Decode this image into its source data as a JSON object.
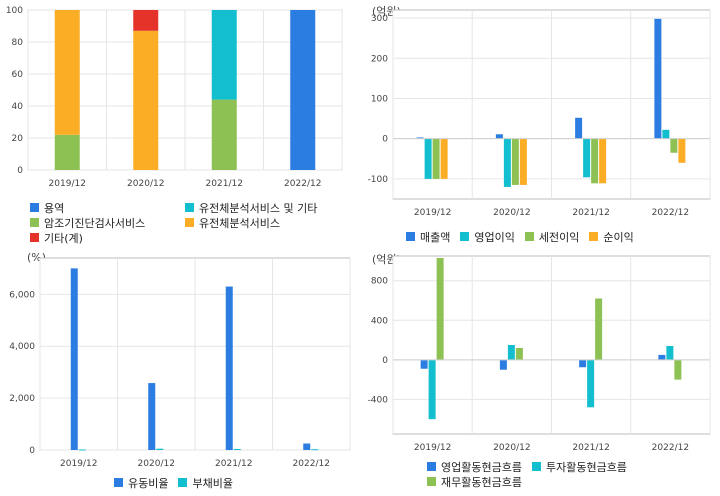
{
  "colors": {
    "blue": "#2b7de1",
    "teal": "#13bfce",
    "green": "#8dc153",
    "orange": "#fbad26",
    "red": "#e5332a",
    "grid": "#e6e6e6",
    "axis": "#bdbdbd"
  },
  "chart_data": [
    {
      "id": "revenue-mix",
      "type": "bar",
      "stacked": true,
      "title": "",
      "unit": "",
      "categories": [
        "2019/12",
        "2020/12",
        "2021/12",
        "2022/12"
      ],
      "ylim": [
        0,
        100
      ],
      "yticks": [
        0,
        20,
        40,
        60,
        80,
        100
      ],
      "series": [
        {
          "name": "용역",
          "color": "blue",
          "values": [
            0,
            0,
            0,
            100
          ]
        },
        {
          "name": "유전체분석서비스 및 기타",
          "color": "teal",
          "values": [
            0,
            0,
            56,
            0
          ]
        },
        {
          "name": "암조기진단검사서비스",
          "color": "green",
          "values": [
            22,
            0,
            44,
            0
          ]
        },
        {
          "name": "유전체분석서비스",
          "color": "orange",
          "values": [
            78,
            87,
            0,
            0
          ]
        },
        {
          "name": "기타(계)",
          "color": "red",
          "values": [
            0,
            13,
            0,
            0
          ]
        }
      ]
    },
    {
      "id": "income",
      "type": "bar",
      "stacked": false,
      "unit": "(억원)",
      "categories": [
        "2019/12",
        "2020/12",
        "2021/12",
        "2022/12"
      ],
      "ylim": [
        -150,
        320
      ],
      "yticks": [
        -100,
        0,
        100,
        200,
        300
      ],
      "series": [
        {
          "name": "매출액",
          "color": "blue",
          "values": [
            3,
            11,
            52,
            298
          ]
        },
        {
          "name": "영업이익",
          "color": "teal",
          "values": [
            -100,
            -120,
            -96,
            22
          ]
        },
        {
          "name": "세전이익",
          "color": "green",
          "values": [
            -100,
            -115,
            -111,
            -35
          ]
        },
        {
          "name": "순이익",
          "color": "orange",
          "values": [
            -100,
            -115,
            -111,
            -60
          ]
        }
      ]
    },
    {
      "id": "ratios",
      "type": "bar",
      "stacked": false,
      "unit": "(%)",
      "categories": [
        "2019/12",
        "2020/12",
        "2021/12",
        "2022/12"
      ],
      "ylim": [
        0,
        7400
      ],
      "yticks": [
        0,
        2000,
        4000,
        6000
      ],
      "ytick_labels": [
        "0",
        "2,000",
        "4,000",
        "6,000"
      ],
      "series": [
        {
          "name": "유동비율",
          "color": "blue",
          "values": [
            7000,
            2580,
            6300,
            250
          ]
        },
        {
          "name": "부채비율",
          "color": "teal",
          "values": [
            20,
            50,
            40,
            30
          ]
        }
      ]
    },
    {
      "id": "cashflow",
      "type": "bar",
      "stacked": false,
      "unit": "(억원)",
      "categories": [
        "2019/12",
        "2020/12",
        "2021/12",
        "2022/12"
      ],
      "ylim": [
        -750,
        1050
      ],
      "yticks": [
        -400,
        0,
        400,
        800
      ],
      "series": [
        {
          "name": "영업활동현금흐름",
          "color": "blue",
          "values": [
            -90,
            -100,
            -75,
            50
          ]
        },
        {
          "name": "투자활동현금흐름",
          "color": "teal",
          "values": [
            -600,
            150,
            -480,
            140
          ]
        },
        {
          "name": "재무활동현금흐름",
          "color": "green",
          "values": [
            1030,
            120,
            620,
            -200
          ]
        }
      ]
    }
  ]
}
